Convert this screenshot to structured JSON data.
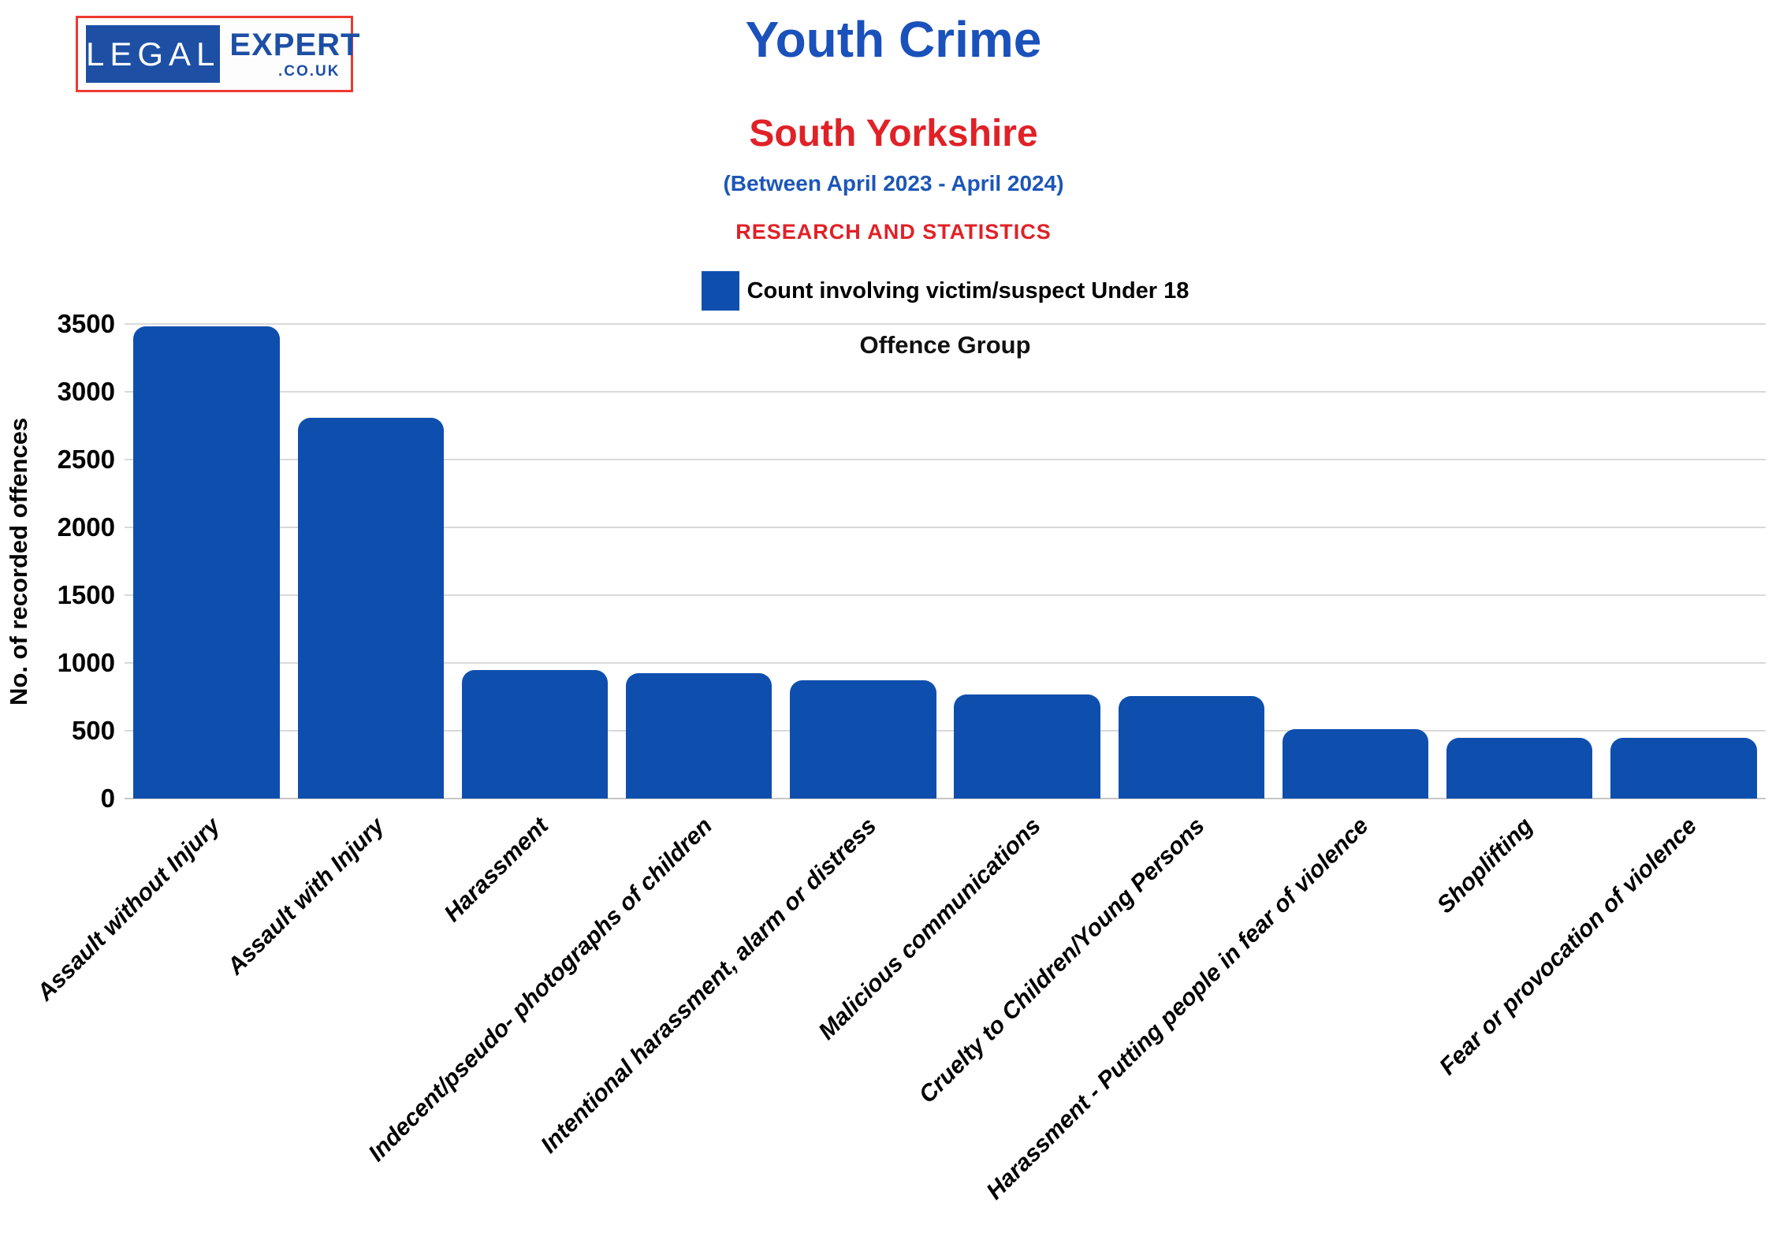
{
  "logo": {
    "part1": "LEGAL",
    "part2": "EXPERT",
    "part3": ".CO.UK"
  },
  "header": {
    "title": "Youth Crime",
    "subtitle": "South Yorkshire",
    "period": "(Between April 2023 - April 2024)",
    "tagline": "RESEARCH AND STATISTICS"
  },
  "legend": {
    "label": "Count involving victim/suspect Under 18"
  },
  "chart_data": {
    "type": "bar",
    "title": "Offence Group",
    "xlabel": "Offence Group",
    "ylabel": "No. of recorded offences",
    "ylim": [
      0,
      3500
    ],
    "ytick_step": 500,
    "grid": "horizontal",
    "legend_position": "top",
    "series_name": "Count involving victim/suspect Under 18",
    "categories": [
      "Assault without Injury",
      "Assault with Injury",
      "Harassment",
      "Indecent/pseudo- photographs of children",
      "Intentional harassment, alarm or distress",
      "Malicious communications",
      "Cruelty to Children/Young Persons",
      "Harassment - Putting people in fear of violence",
      "Shoplifting",
      "Fear or provocation of violence"
    ],
    "values": [
      3480,
      2810,
      945,
      925,
      875,
      770,
      755,
      510,
      450,
      445
    ]
  },
  "colors": {
    "bar": "#0e4fae",
    "title_blue": "#1a51bb",
    "period_blue": "#1c56b8",
    "red": "#e02127",
    "grid": "#d9d9d9",
    "logo_blue": "#1d4fa5",
    "logo_border": "#ee3a30"
  }
}
